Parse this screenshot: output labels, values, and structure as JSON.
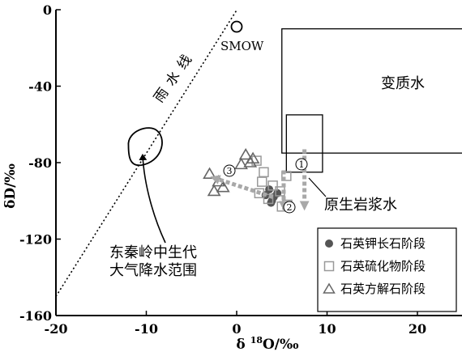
{
  "chart_data": {
    "type": "scatter",
    "xlabel": "δ ¹⁸O/‰",
    "ylabel": "δD/‰",
    "xlim": [
      -20,
      25
    ],
    "ylim": [
      -160,
      0
    ],
    "xticks": [
      "-20",
      "-10",
      "0",
      "10",
      "20"
    ],
    "yticks": [
      "0",
      "-40",
      "-80",
      "-120",
      "-160"
    ],
    "xtick_values": [
      -20,
      -10,
      0,
      10,
      20
    ],
    "ytick_values": [
      0,
      -40,
      -80,
      -120,
      -160
    ],
    "grid": false,
    "legend_position": "bottom-right",
    "meteoric_water_line": {
      "label": "雨水线",
      "points": [
        [
          -20,
          -150
        ],
        [
          0,
          0
        ]
      ]
    },
    "smow": {
      "label": "SMOW",
      "x": 0,
      "y": 0
    },
    "metamorphic_water": {
      "label": "变质水",
      "x": [
        5,
        25
      ],
      "y": [
        -75,
        -10
      ]
    },
    "magmatic_water": {
      "label": "原生岩浆水",
      "x": [
        5.5,
        9.5
      ],
      "y": [
        -85,
        -55
      ]
    },
    "paleo_meteoric": {
      "label_line1": "东秦岭中生代",
      "label_line2": "大气降水范围",
      "center": [
        -10,
        -72
      ]
    },
    "arrows": [
      {
        "label": "①",
        "x": [
          7.5,
          7.5
        ],
        "y": [
          -73,
          -103
        ]
      },
      {
        "label": "②",
        "x": [
          5.2,
          5.2
        ],
        "y": [
          -84,
          -103
        ]
      },
      {
        "label": "③",
        "x": [
          4,
          -2.5
        ],
        "y": [
          -98,
          -88
        ]
      }
    ],
    "series": [
      {
        "name": "石英钾长石阶段",
        "marker": "filled-circle",
        "color": "#555555",
        "points": [
          [
            3.6,
            -94
          ],
          [
            3.2,
            -97
          ],
          [
            3.9,
            -100
          ],
          [
            4.1,
            -98
          ],
          [
            4.5,
            -96
          ],
          [
            3.8,
            -101
          ]
        ]
      },
      {
        "name": "石英硫化物阶段",
        "marker": "open-square",
        "color": "#999999",
        "points": [
          [
            2.2,
            -79
          ],
          [
            3.0,
            -85
          ],
          [
            5.5,
            -87
          ],
          [
            2.8,
            -90
          ],
          [
            4.0,
            -92
          ],
          [
            4.8,
            -95
          ],
          [
            5.0,
            -103
          ],
          [
            3.5,
            -99
          ],
          [
            5.6,
            -102
          ],
          [
            2.5,
            -96
          ]
        ]
      },
      {
        "name": "石英方解石阶段",
        "marker": "open-triangle",
        "color": "#666666",
        "points": [
          [
            -3.0,
            -86
          ],
          [
            -2.0,
            -90
          ],
          [
            -2.5,
            -95
          ],
          [
            -1.5,
            -93
          ],
          [
            1.0,
            -76
          ],
          [
            1.5,
            -80
          ],
          [
            0.5,
            -81
          ],
          [
            1.8,
            -78
          ]
        ]
      }
    ]
  }
}
